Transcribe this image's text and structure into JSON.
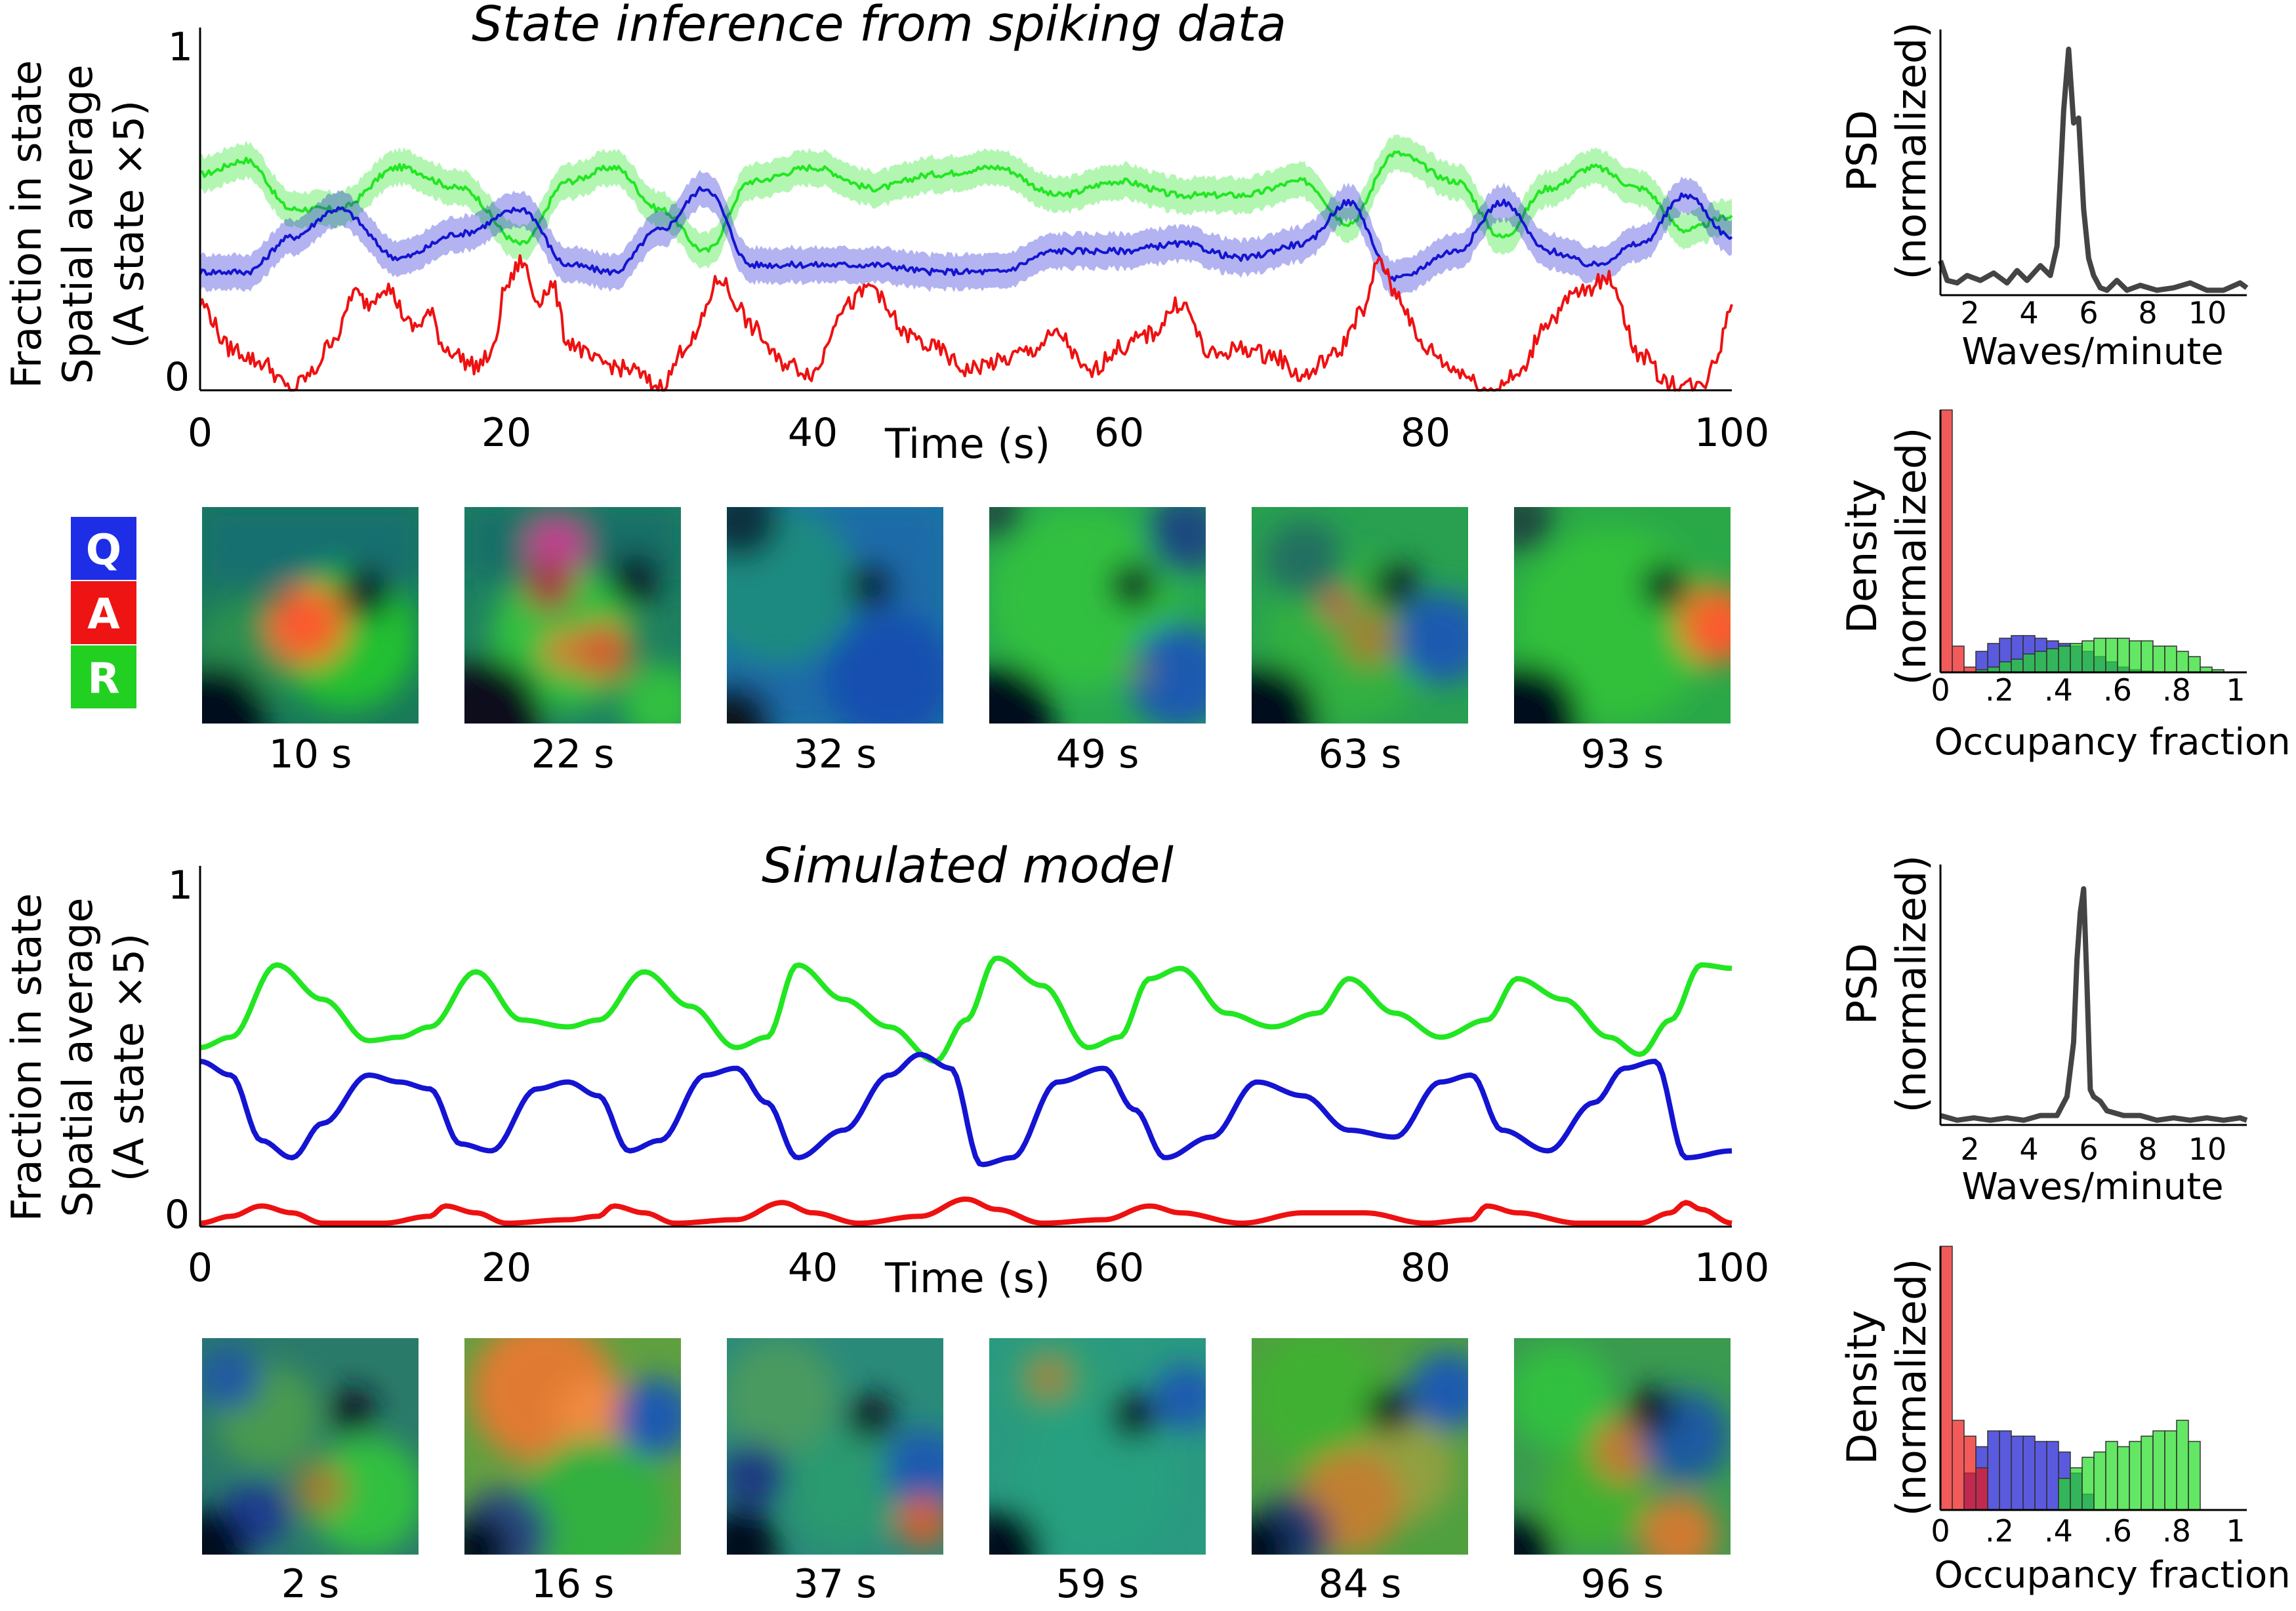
{
  "colors": {
    "Q": "#1414d2",
    "A": "#ee1111",
    "R": "#22e622",
    "psd": "#444444"
  },
  "legend": [
    {
      "label": "Q",
      "color": "#1e2ee6"
    },
    {
      "label": "A",
      "color": "#ee1414"
    },
    {
      "label": "R",
      "color": "#22d022"
    }
  ],
  "top": {
    "title": "State inference from spiking data",
    "ylabel1": "Fraction in state",
    "ylabel2": "Spatial average",
    "ylabel3": "(A state ×5)",
    "xlabel": "Time (s)",
    "xticks": [
      "0",
      "20",
      "40",
      "60",
      "80",
      "100"
    ],
    "yticks": [
      "0",
      "1"
    ],
    "snapshots": [
      "10 s",
      "22 s",
      "32 s",
      "49 s",
      "63 s",
      "93 s"
    ],
    "psd": {
      "ylabel1": "PSD",
      "ylabel2": "(normalized)",
      "xlabel": "Waves/minute",
      "xticks": [
        "2",
        "4",
        "6",
        "8",
        "10"
      ]
    },
    "occ": {
      "ylabel1": "Density",
      "ylabel2": "(normalized)",
      "xlabel": "Occupancy fraction",
      "xticks": [
        "0",
        ".2",
        ".4",
        ".6",
        ".8",
        "1"
      ]
    }
  },
  "bottom": {
    "title": "Simulated model",
    "ylabel1": "Fraction in state",
    "ylabel2": "Spatial average",
    "ylabel3": "(A state ×5)",
    "xlabel": "Time (s)",
    "xticks": [
      "0",
      "20",
      "40",
      "60",
      "80",
      "100"
    ],
    "yticks": [
      "0",
      "1"
    ],
    "snapshots": [
      "2 s",
      "16 s",
      "37 s",
      "59 s",
      "84 s",
      "96 s"
    ],
    "psd": {
      "ylabel1": "PSD",
      "ylabel2": "(normalized)",
      "xlabel": "Waves/minute",
      "xticks": [
        "2",
        "4",
        "6",
        "8",
        "10"
      ]
    },
    "occ": {
      "ylabel1": "Density",
      "ylabel2": "(normalized)",
      "xlabel": "Occupancy fraction",
      "xticks": [
        "0",
        ".2",
        ".4",
        ".6",
        ".8",
        "1"
      ]
    }
  },
  "chart_data": [
    {
      "type": "line",
      "title": "State inference from spiking data",
      "xlabel": "Time (s)",
      "ylabel": "Fraction in state / Spatial average (A state ×5)",
      "xlim": [
        0,
        100
      ],
      "ylim": [
        0,
        1
      ],
      "band_halfwidth": 0.05,
      "series": [
        {
          "name": "R",
          "x": [
            0,
            3,
            6,
            9,
            13,
            17,
            21,
            24,
            27,
            30,
            33,
            36,
            40,
            44,
            48,
            52,
            56,
            60,
            64,
            68,
            72,
            75,
            78,
            82,
            85,
            88,
            91,
            94,
            97,
            100
          ],
          "y": [
            0.62,
            0.66,
            0.52,
            0.52,
            0.64,
            0.58,
            0.42,
            0.6,
            0.64,
            0.52,
            0.4,
            0.6,
            0.64,
            0.58,
            0.62,
            0.64,
            0.56,
            0.6,
            0.56,
            0.56,
            0.6,
            0.48,
            0.68,
            0.6,
            0.44,
            0.58,
            0.64,
            0.58,
            0.46,
            0.5
          ]
        },
        {
          "name": "Q",
          "x": [
            0,
            3,
            6,
            9,
            13,
            17,
            21,
            24,
            27,
            30,
            33,
            36,
            40,
            44,
            48,
            52,
            56,
            60,
            64,
            68,
            72,
            75,
            78,
            82,
            85,
            88,
            91,
            94,
            97,
            100
          ],
          "y": [
            0.34,
            0.34,
            0.44,
            0.52,
            0.38,
            0.45,
            0.52,
            0.36,
            0.34,
            0.46,
            0.58,
            0.36,
            0.36,
            0.36,
            0.34,
            0.34,
            0.4,
            0.4,
            0.42,
            0.38,
            0.42,
            0.54,
            0.32,
            0.4,
            0.54,
            0.4,
            0.36,
            0.42,
            0.56,
            0.44
          ]
        },
        {
          "name": "A",
          "x": [
            0,
            2,
            4,
            6,
            7,
            9,
            10,
            11,
            12,
            14,
            15,
            16,
            18,
            19,
            20,
            21,
            22,
            23,
            24,
            26,
            28,
            30,
            32,
            34,
            35,
            36,
            38,
            40,
            42,
            44,
            45,
            46,
            48,
            50,
            52,
            54,
            56,
            58,
            60,
            62,
            64,
            66,
            68,
            70,
            72,
            74,
            76,
            77,
            78,
            80,
            82,
            84,
            86,
            88,
            90,
            92,
            94,
            96,
            98,
            99,
            100
          ],
          "y": [
            0.25,
            0.12,
            0.08,
            0.0,
            0.04,
            0.16,
            0.28,
            0.25,
            0.3,
            0.18,
            0.22,
            0.12,
            0.07,
            0.1,
            0.3,
            0.37,
            0.26,
            0.3,
            0.14,
            0.08,
            0.06,
            0.01,
            0.14,
            0.32,
            0.25,
            0.18,
            0.08,
            0.05,
            0.24,
            0.3,
            0.22,
            0.16,
            0.12,
            0.06,
            0.08,
            0.11,
            0.16,
            0.05,
            0.12,
            0.16,
            0.25,
            0.1,
            0.12,
            0.1,
            0.04,
            0.1,
            0.23,
            0.38,
            0.28,
            0.12,
            0.06,
            0.0,
            0.04,
            0.2,
            0.28,
            0.32,
            0.1,
            0.02,
            0.01,
            0.1,
            0.25
          ]
        }
      ]
    },
    {
      "type": "line",
      "xlabel": "Waves/minute",
      "ylabel": "PSD (normalized)",
      "xlim": [
        1,
        10.2
      ],
      "series": [
        {
          "x": [
            1,
            1.2,
            1.5,
            1.8,
            2.2,
            2.6,
            3,
            3.3,
            3.6,
            4,
            4.3,
            4.5,
            4.7,
            4.85,
            5,
            5.15,
            5.3,
            5.45,
            5.6,
            5.8,
            6,
            6.3,
            6.6,
            7,
            7.5,
            8,
            8.5,
            9,
            9.5,
            10,
            10.2
          ],
          "y": [
            0.14,
            0.06,
            0.05,
            0.08,
            0.06,
            0.09,
            0.05,
            0.1,
            0.06,
            0.12,
            0.08,
            0.2,
            0.75,
            1.0,
            0.7,
            0.72,
            0.35,
            0.15,
            0.08,
            0.03,
            0.02,
            0.06,
            0.02,
            0.04,
            0.02,
            0.03,
            0.05,
            0.02,
            0.02,
            0.05,
            0.03
          ]
        }
      ]
    },
    {
      "type": "bar",
      "xlabel": "Occupancy fraction",
      "ylabel": "Density (normalized)",
      "xlim": [
        0,
        1
      ],
      "bin_width": 0.04,
      "series": [
        {
          "name": "A",
          "color": "#ee1414",
          "starts": [
            0.0,
            0.04,
            0.08
          ],
          "values": [
            1.0,
            0.1,
            0.02
          ]
        },
        {
          "name": "Q",
          "color": "#1414d2",
          "starts": [
            0.12,
            0.16,
            0.2,
            0.24,
            0.28,
            0.32,
            0.36,
            0.4,
            0.44,
            0.48,
            0.52,
            0.56,
            0.6,
            0.64,
            0.68
          ],
          "values": [
            0.08,
            0.11,
            0.13,
            0.14,
            0.14,
            0.13,
            0.12,
            0.11,
            0.1,
            0.08,
            0.06,
            0.04,
            0.02,
            0.01,
            0.005
          ]
        },
        {
          "name": "R",
          "color": "#22dd22",
          "starts": [
            0.12,
            0.16,
            0.2,
            0.24,
            0.28,
            0.32,
            0.36,
            0.4,
            0.44,
            0.48,
            0.52,
            0.56,
            0.6,
            0.64,
            0.68,
            0.72,
            0.76,
            0.8,
            0.84,
            0.88,
            0.92
          ],
          "values": [
            0.01,
            0.02,
            0.04,
            0.05,
            0.07,
            0.08,
            0.09,
            0.1,
            0.11,
            0.12,
            0.13,
            0.13,
            0.13,
            0.12,
            0.12,
            0.1,
            0.1,
            0.08,
            0.06,
            0.02,
            0.01
          ]
        }
      ]
    },
    {
      "type": "line",
      "title": "Simulated model",
      "xlabel": "Time (s)",
      "ylabel": "Fraction in state / Spatial average (A state ×5)",
      "xlim": [
        0,
        100
      ],
      "ylim": [
        0,
        1
      ],
      "series": [
        {
          "name": "R",
          "x": [
            0,
            2,
            5,
            8,
            11,
            13,
            15,
            18,
            21,
            24,
            26,
            29,
            32,
            35,
            37,
            39,
            42,
            45,
            48,
            50,
            52,
            55,
            58,
            60,
            62,
            64,
            67,
            70,
            73,
            75,
            78,
            81,
            84,
            86,
            89,
            92,
            94,
            96,
            98,
            100
          ],
          "y": [
            0.52,
            0.55,
            0.76,
            0.66,
            0.54,
            0.55,
            0.58,
            0.74,
            0.6,
            0.58,
            0.6,
            0.74,
            0.64,
            0.52,
            0.55,
            0.76,
            0.66,
            0.58,
            0.48,
            0.6,
            0.78,
            0.7,
            0.52,
            0.55,
            0.72,
            0.75,
            0.62,
            0.58,
            0.62,
            0.72,
            0.62,
            0.55,
            0.6,
            0.72,
            0.66,
            0.55,
            0.5,
            0.6,
            0.76,
            0.75
          ]
        },
        {
          "name": "Q",
          "x": [
            0,
            2,
            4,
            6,
            8,
            11,
            13,
            15,
            17,
            19,
            22,
            24,
            26,
            28,
            30,
            33,
            35,
            37,
            39,
            42,
            45,
            47,
            49,
            51,
            53,
            56,
            59,
            61,
            63,
            66,
            69,
            72,
            75,
            78,
            81,
            83,
            85,
            88,
            91,
            93,
            95,
            97,
            100
          ],
          "y": [
            0.48,
            0.44,
            0.25,
            0.2,
            0.3,
            0.44,
            0.42,
            0.4,
            0.24,
            0.22,
            0.4,
            0.42,
            0.38,
            0.22,
            0.25,
            0.44,
            0.46,
            0.36,
            0.2,
            0.28,
            0.44,
            0.5,
            0.46,
            0.18,
            0.2,
            0.42,
            0.46,
            0.34,
            0.2,
            0.26,
            0.42,
            0.38,
            0.28,
            0.26,
            0.42,
            0.44,
            0.28,
            0.22,
            0.36,
            0.46,
            0.48,
            0.2,
            0.22
          ]
        },
        {
          "name": "A",
          "x": [
            0,
            2,
            4,
            6,
            8,
            12,
            15,
            16,
            18,
            20,
            24,
            26,
            27,
            29,
            31,
            35,
            38,
            40,
            43,
            47,
            50,
            52,
            55,
            59,
            62,
            64,
            68,
            72,
            76,
            80,
            83,
            84,
            86,
            90,
            94,
            96,
            97,
            98,
            100
          ],
          "y": [
            0.01,
            0.03,
            0.06,
            0.04,
            0.01,
            0.01,
            0.03,
            0.06,
            0.04,
            0.01,
            0.02,
            0.03,
            0.06,
            0.04,
            0.01,
            0.02,
            0.07,
            0.04,
            0.01,
            0.03,
            0.08,
            0.05,
            0.01,
            0.02,
            0.06,
            0.04,
            0.01,
            0.04,
            0.04,
            0.01,
            0.02,
            0.06,
            0.04,
            0.01,
            0.01,
            0.04,
            0.07,
            0.05,
            0.01
          ]
        }
      ]
    },
    {
      "type": "line",
      "xlabel": "Waves/minute",
      "ylabel": "PSD (normalized)",
      "xlim": [
        1,
        10.2
      ],
      "series": [
        {
          "x": [
            1,
            1.5,
            2,
            2.5,
            3,
            3.5,
            4,
            4.5,
            4.8,
            5.0,
            5.1,
            5.2,
            5.3,
            5.4,
            5.5,
            5.6,
            5.8,
            6,
            6.5,
            7,
            7.5,
            8,
            8.5,
            9,
            9.5,
            10,
            10.2
          ],
          "y": [
            0.04,
            0.02,
            0.03,
            0.02,
            0.03,
            0.02,
            0.04,
            0.04,
            0.12,
            0.35,
            0.7,
            0.9,
            1.0,
            0.6,
            0.15,
            0.12,
            0.1,
            0.06,
            0.04,
            0.04,
            0.02,
            0.03,
            0.02,
            0.03,
            0.02,
            0.03,
            0.02
          ]
        }
      ]
    },
    {
      "type": "bar",
      "xlabel": "Occupancy fraction",
      "ylabel": "Density (normalized)",
      "xlim": [
        0,
        1
      ],
      "bin_width": 0.04,
      "series": [
        {
          "name": "A",
          "color": "#ee1414",
          "starts": [
            0.0,
            0.04,
            0.08,
            0.12
          ],
          "values": [
            1.0,
            0.34,
            0.28,
            0.16
          ]
        },
        {
          "name": "Q",
          "color": "#1414d2",
          "starts": [
            0.08,
            0.12,
            0.16,
            0.2,
            0.24,
            0.28,
            0.32,
            0.36,
            0.4,
            0.44,
            0.48
          ],
          "values": [
            0.14,
            0.24,
            0.3,
            0.3,
            0.28,
            0.28,
            0.26,
            0.26,
            0.22,
            0.14,
            0.06
          ]
        },
        {
          "name": "R",
          "color": "#22dd22",
          "starts": [
            0.4,
            0.44,
            0.48,
            0.52,
            0.56,
            0.6,
            0.64,
            0.68,
            0.72,
            0.76,
            0.8,
            0.84
          ],
          "values": [
            0.12,
            0.16,
            0.2,
            0.22,
            0.26,
            0.24,
            0.26,
            0.28,
            0.3,
            0.3,
            0.34,
            0.26
          ]
        }
      ]
    }
  ]
}
